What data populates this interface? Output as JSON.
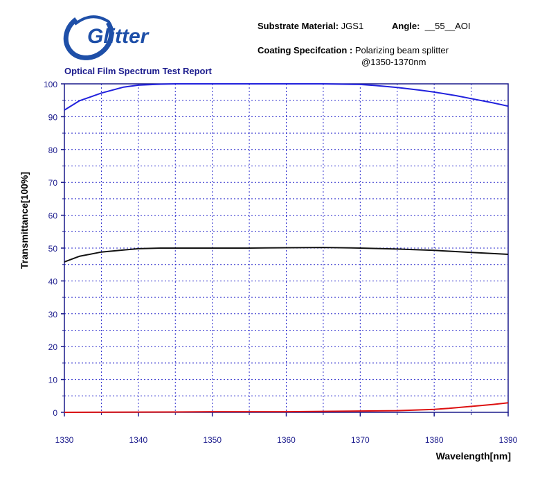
{
  "header": {
    "logo_text": "Glitter",
    "report_title": "Optical Film Spectrum Test Report",
    "substrate_label": "Substrate Material:",
    "substrate_value": "JGS1",
    "angle_label": "Angle:",
    "angle_value": "__55__AOI",
    "coating_label": "Coating Specifcation :",
    "coating_value_line1": "Polarizing beam splitter",
    "coating_value_line2": "@1350-1370nm"
  },
  "colors": {
    "axis": "#1a1a8c",
    "grid": "#2a2acc",
    "series_blue": "#2222dd",
    "series_black": "#111111",
    "series_red": "#dd1111",
    "logo_blue": "#1e4fa8"
  },
  "chart_data": {
    "type": "line",
    "title": "",
    "xlabel": "Wavelength[nm]",
    "ylabel": "Transmittance[100%]",
    "xlim": [
      1330,
      1390
    ],
    "ylim": [
      0,
      100
    ],
    "x_ticks": [
      1330,
      1340,
      1350,
      1360,
      1370,
      1380,
      1390
    ],
    "y_ticks": [
      0,
      10,
      20,
      30,
      40,
      50,
      60,
      70,
      80,
      90,
      100
    ],
    "grid": true,
    "series": [
      {
        "color": "#2222dd",
        "x": [
          1330,
          1332,
          1335,
          1338,
          1340,
          1343,
          1345,
          1350,
          1355,
          1360,
          1365,
          1370,
          1372,
          1375,
          1378,
          1380,
          1383,
          1385,
          1388,
          1390
        ],
        "y": [
          92.0,
          94.8,
          97.2,
          99.0,
          99.6,
          99.9,
          100.0,
          100.0,
          100.0,
          100.0,
          100.0,
          99.8,
          99.5,
          98.9,
          98.1,
          97.5,
          96.4,
          95.5,
          94.2,
          93.2
        ]
      },
      {
        "color": "#111111",
        "x": [
          1330,
          1332,
          1335,
          1338,
          1340,
          1343,
          1345,
          1350,
          1355,
          1360,
          1365,
          1370,
          1375,
          1380,
          1385,
          1390
        ],
        "y": [
          45.8,
          47.5,
          48.8,
          49.4,
          49.8,
          50.0,
          50.0,
          50.0,
          50.0,
          50.1,
          50.2,
          50.0,
          49.7,
          49.3,
          48.7,
          48.1
        ]
      },
      {
        "color": "#dd1111",
        "x": [
          1330,
          1345,
          1350,
          1360,
          1370,
          1375,
          1380,
          1382,
          1384,
          1386,
          1388,
          1390
        ],
        "y": [
          0.0,
          0.1,
          0.2,
          0.2,
          0.4,
          0.5,
          0.9,
          1.2,
          1.6,
          2.0,
          2.4,
          2.9
        ]
      }
    ]
  }
}
